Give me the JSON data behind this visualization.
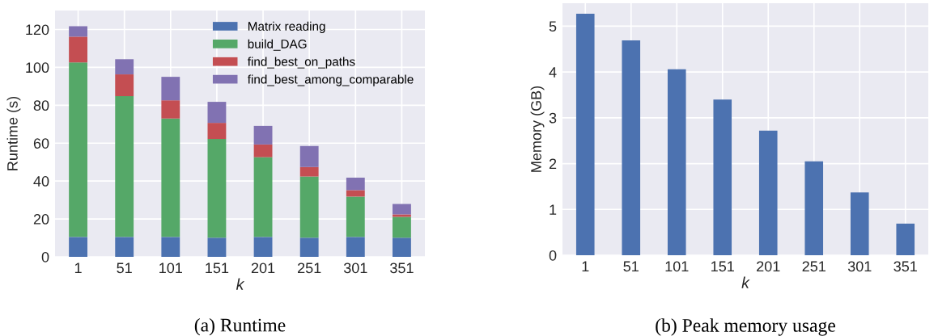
{
  "chart_data": [
    {
      "type": "bar",
      "title": "(a) Runtime",
      "xlabel": "k",
      "ylabel": "Runtime (s)",
      "stacked": true,
      "categories": [
        "1",
        "51",
        "101",
        "151",
        "201",
        "251",
        "301",
        "351"
      ],
      "series": [
        {
          "name": "Matrix reading",
          "color": "#4c72b0",
          "values": [
            10.5,
            10.5,
            10.5,
            10.1,
            10.5,
            10.1,
            10.5,
            10.1
          ]
        },
        {
          "name": "build_DAG",
          "color": "#55a868",
          "values": [
            92.1,
            74.3,
            62.5,
            52.1,
            42.1,
            32.3,
            21.3,
            11.0
          ]
        },
        {
          "name": "find_best_on_paths",
          "color": "#c44e52",
          "values": [
            13.6,
            11.5,
            9.6,
            8.5,
            6.7,
            5.0,
            3.4,
            1.3
          ]
        },
        {
          "name": "find_best_among_comparable",
          "color": "#8172b2",
          "values": [
            5.5,
            8.0,
            12.4,
            11.1,
            9.8,
            11.1,
            6.6,
            5.5
          ]
        }
      ],
      "ylim": [
        0,
        130
      ],
      "yticks": [
        0,
        20,
        40,
        60,
        80,
        100,
        120
      ],
      "grid": true,
      "legend": "top right"
    },
    {
      "type": "bar",
      "title": "(b) Peak memory usage",
      "xlabel": "k",
      "ylabel": "Memory (GB)",
      "categories": [
        "1",
        "51",
        "101",
        "151",
        "201",
        "251",
        "301",
        "351"
      ],
      "series": [
        {
          "color": "#4c72b0",
          "values": [
            5.27,
            4.69,
            4.06,
            3.4,
            2.72,
            2.05,
            1.37,
            0.69
          ]
        }
      ],
      "ylim": [
        0,
        5.5
      ],
      "yticks": [
        0,
        1,
        2,
        3,
        4,
        5
      ],
      "grid": true
    }
  ]
}
